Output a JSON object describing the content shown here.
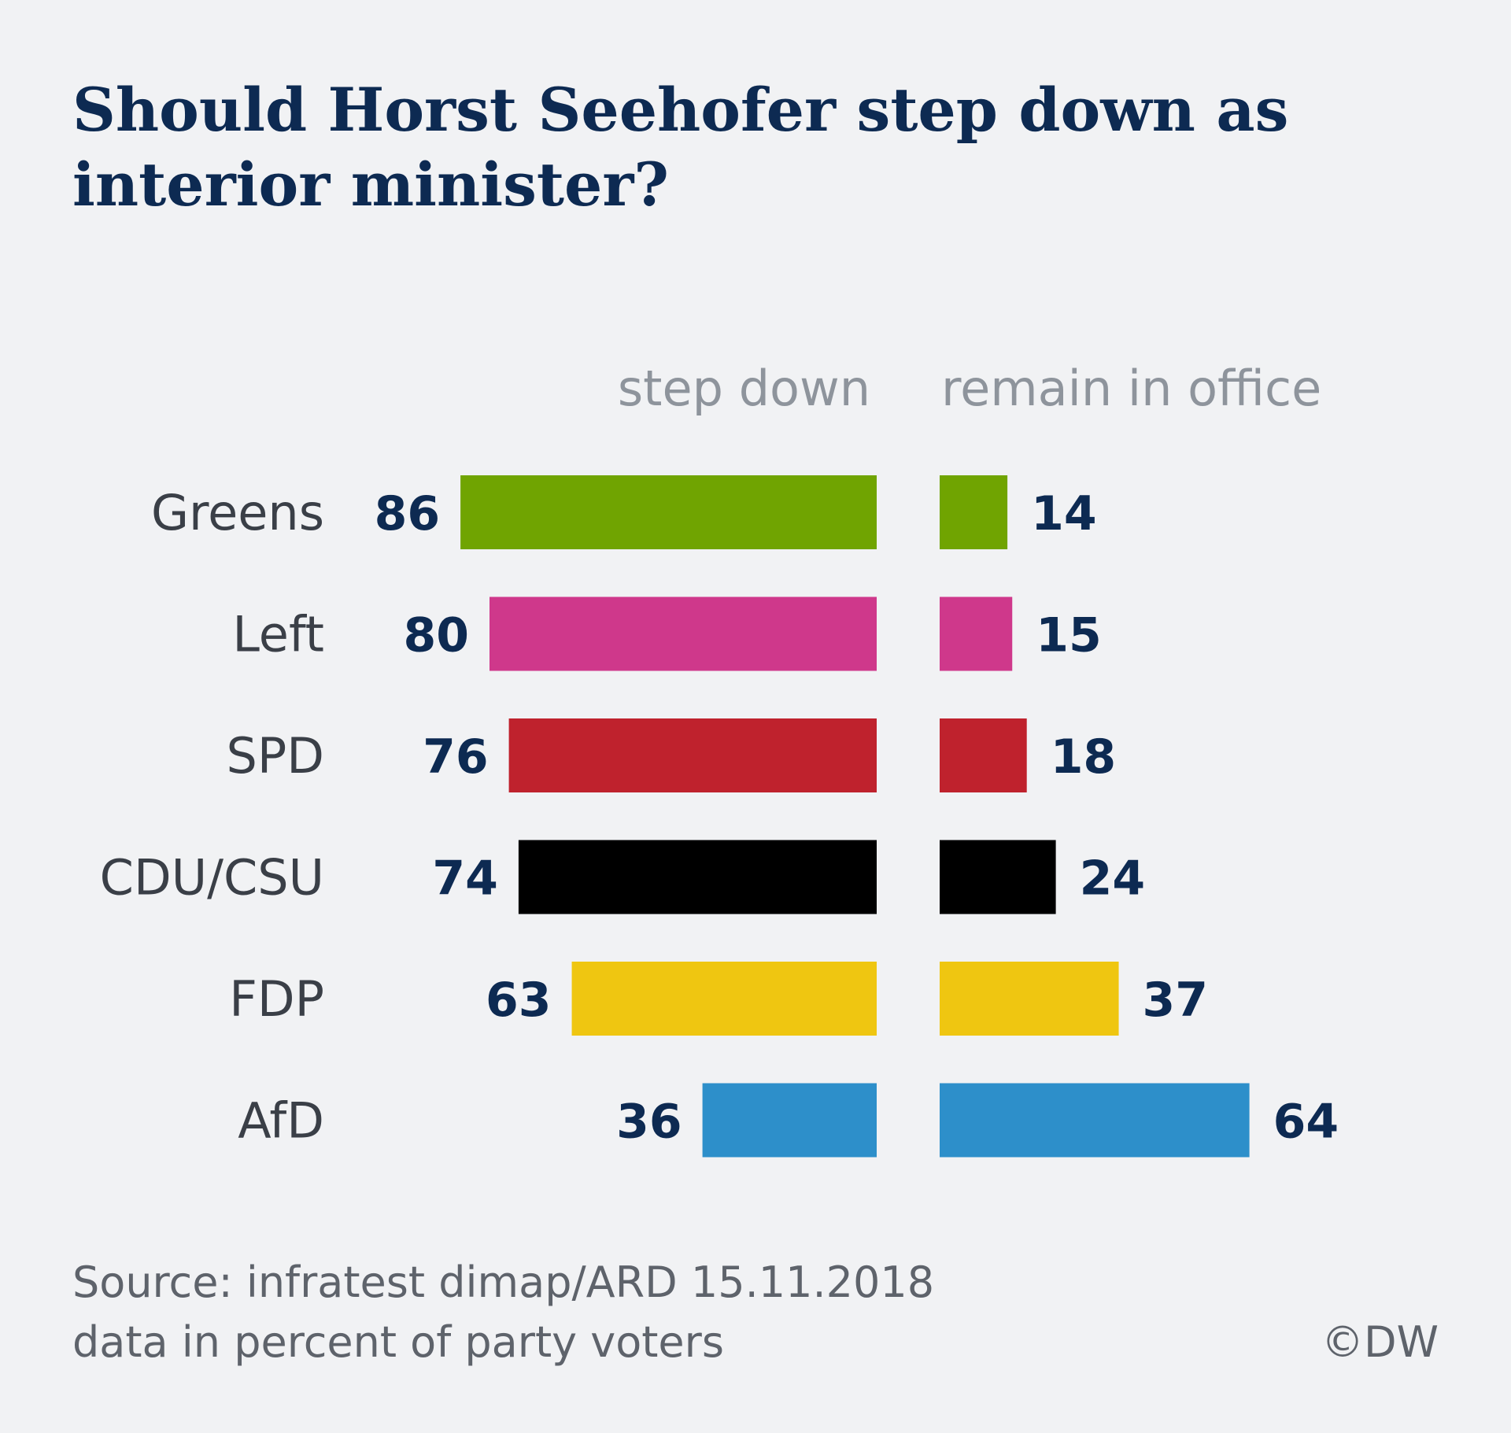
{
  "title_lines": [
    "Should Horst Seehofer step down as",
    "interior minister?"
  ],
  "source_lines": [
    "Source: infratest dimap/ARD 15.11.2018",
    "data in percent of party voters"
  ],
  "credit": "©DW",
  "chart_data": {
    "type": "bar",
    "title": "Should Horst Seehofer step down as interior minister?",
    "categories": [
      "Greens",
      "Left",
      "SPD",
      "CDU/CSU",
      "FDP",
      "AfD"
    ],
    "series": [
      {
        "name": "step down",
        "values": [
          86,
          80,
          76,
          74,
          63,
          36
        ]
      },
      {
        "name": "remain in office",
        "values": [
          14,
          15,
          18,
          24,
          37,
          64
        ]
      }
    ],
    "colors": [
      "#70a401",
      "#cf388b",
      "#bf222d",
      "#000000",
      "#efc611",
      "#2d8fca"
    ],
    "unit": "percent of party voters"
  }
}
